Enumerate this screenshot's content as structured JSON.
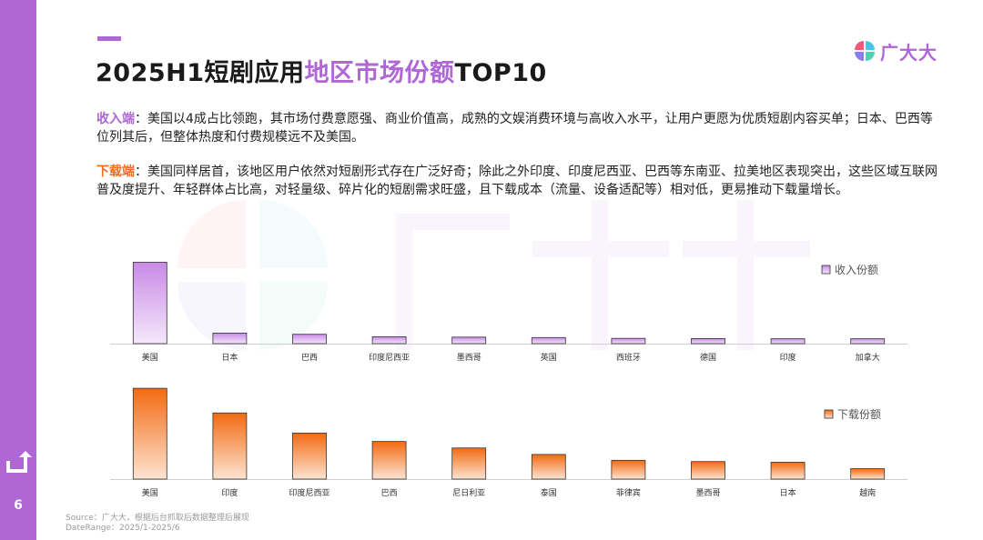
{
  "page": {
    "number": "6"
  },
  "header": {
    "title_part1": "2025H1短剧应用",
    "title_highlight": "地区市场份额",
    "title_part2": "TOP10",
    "logo_text": "广大大"
  },
  "body": {
    "revenue_key": "收入端",
    "revenue_text": "：美国以4成占比领跑，其市场付费意愿强、商业价值高，成熟的文娱消费环境与高收入水平，让用户更愿为优质短剧内容买单；日本、巴西等位列其后，但整体热度和付费规模远不及美国。",
    "download_key": "下载端",
    "download_text": "：美国同样居首，该地区用户依然对短剧形式存在广泛好奇；除此之外印度、印度尼西亚、巴西等东南亚、拉美地区表现突出，这些区域互联网普及度提升、年轻群体占比高，对轻量级、碎片化的短剧需求旺盛，且下载成本（流量、设备适配等）相对低，更易推动下载量增长。"
  },
  "footer": {
    "source": "Source：广大大，根据后台抓取后数据整理后展现",
    "daterange": "DateRange：2025/1-2025/6"
  },
  "colors": {
    "purple": "#b067d6",
    "orange": "#ef6d1e",
    "revenue_bar_top": "#c98ae6",
    "revenue_bar_bottom": "#f5e8fb",
    "download_bar_top": "#f26a12",
    "download_bar_bottom": "#fde4d2"
  },
  "chart_data": [
    {
      "type": "bar",
      "legend": "收入份额",
      "legend_position": "top-right",
      "categories": [
        "美国",
        "日本",
        "巴西",
        "印度尼西亚",
        "墨西哥",
        "英国",
        "西班牙",
        "德国",
        "印度",
        "加拿大"
      ],
      "values": [
        40,
        5.2,
        4.6,
        3.4,
        3.2,
        3.0,
        2.6,
        2.5,
        2.4,
        2.4
      ],
      "ylim": [
        0,
        42
      ],
      "grid": false
    },
    {
      "type": "bar",
      "legend": "下载份额",
      "legend_position": "top-right",
      "categories": [
        "美国",
        "印度",
        "印度尼西亚",
        "巴西",
        "尼日利亚",
        "泰国",
        "菲律宾",
        "墨西哥",
        "日本",
        "越南"
      ],
      "values": [
        14.0,
        10.2,
        7.1,
        5.8,
        4.8,
        3.8,
        2.9,
        2.7,
        2.6,
        1.6
      ],
      "ylim": [
        0,
        15
      ],
      "grid": false
    }
  ]
}
